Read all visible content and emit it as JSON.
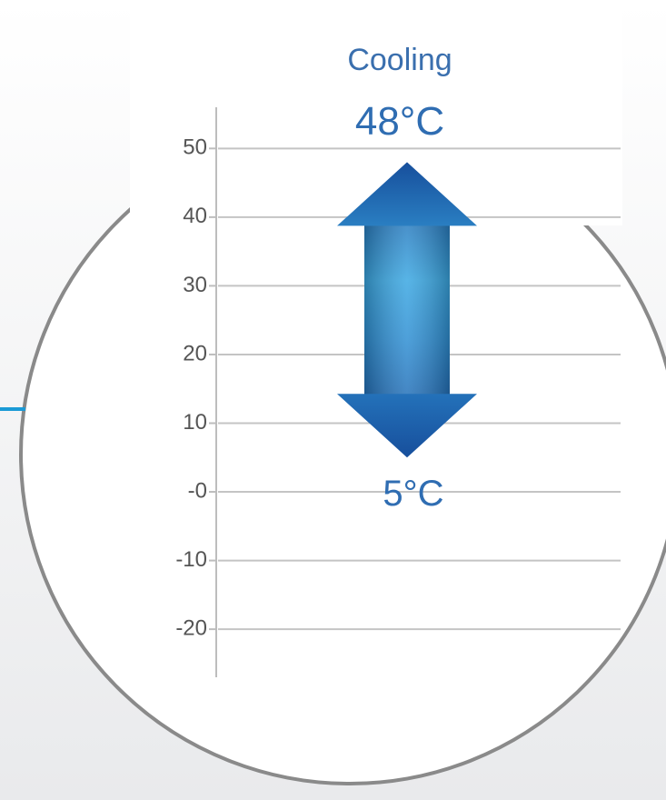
{
  "chart_data": {
    "type": "range",
    "title": "Cooling",
    "values": [
      5,
      48
    ],
    "value_labels": [
      "5°C",
      "48°C"
    ],
    "ylim": [
      -27,
      56
    ],
    "yticks": [
      50,
      40,
      30,
      20,
      10,
      {
        "value": 0,
        "label": "-0"
      },
      -10,
      -20
    ],
    "grid": true,
    "color": "#1a5aa5"
  }
}
